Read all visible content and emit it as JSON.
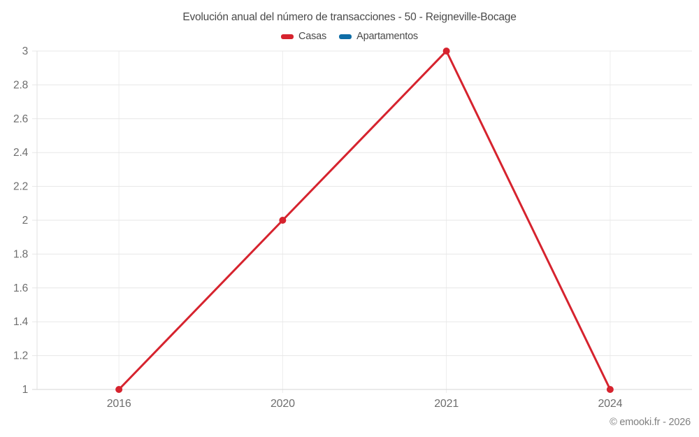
{
  "header": {
    "title": "Evolución anual del número de transacciones - 50 - Reigneville-Bocage"
  },
  "legend": {
    "items": [
      {
        "label": "Casas",
        "color": "#d6232e"
      },
      {
        "label": "Apartamentos",
        "color": "#0f6da6"
      }
    ]
  },
  "footer": {
    "copyright": "© emooki.fr - 2026"
  },
  "chart_data": {
    "type": "line",
    "title": "Evolución anual del número de transacciones - 50 - Reigneville-Bocage",
    "categories": [
      "2016",
      "2020",
      "2021",
      "2024"
    ],
    "series": [
      {
        "name": "Casas",
        "color": "#d6232e",
        "marker": "circle",
        "values": [
          1,
          2,
          3,
          1
        ]
      },
      {
        "name": "Apartamentos",
        "color": "#0f6da6",
        "marker": "circle",
        "values": []
      }
    ],
    "xlabel": "",
    "ylabel": "",
    "ylim": [
      1,
      3
    ],
    "ytick_step": 0.2,
    "ytick_labels": [
      "1",
      "1.2",
      "1.4",
      "1.6",
      "1.8",
      "2",
      "2.2",
      "2.4",
      "2.6",
      "2.8",
      "3"
    ],
    "grid": true,
    "legend_position": "top"
  },
  "colors": {
    "background": "#ffffff",
    "grid_horizontal": "#e7e7e7",
    "grid_vertical": "#ededed",
    "axis_line": "#d6d6d6",
    "y_axis_line": "#e2e2e2",
    "tick_label": "#6e6e6e",
    "title_text": "#4a4a4a",
    "legend_text": "#4a4a4a",
    "copyright_text": "#808080"
  }
}
